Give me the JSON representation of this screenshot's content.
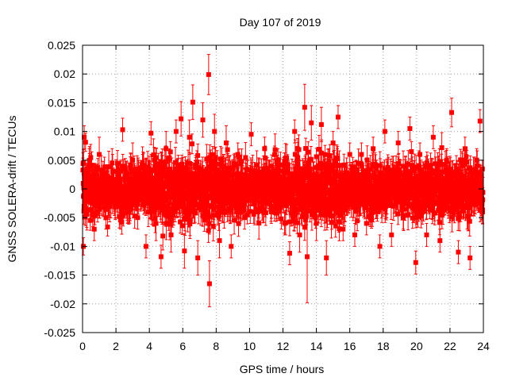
{
  "chart_data": {
    "type": "scatter",
    "title": "Day 107 of 2019",
    "xlabel": "GPS time / hours",
    "ylabel": "GNSS SOLERA-drift / TECUs",
    "xlim": [
      0,
      24
    ],
    "ylim": [
      -0.025,
      0.025
    ],
    "x_ticks": [
      0,
      2,
      4,
      6,
      8,
      10,
      12,
      14,
      16,
      18,
      20,
      22,
      24
    ],
    "y_ticks": [
      -0.025,
      -0.02,
      -0.015,
      -0.01,
      -0.005,
      0,
      0.005,
      0.01,
      0.015,
      0.02,
      0.025
    ],
    "x_tick_labels": [
      "0",
      "2",
      "4",
      "6",
      "8",
      "10",
      "12",
      "14",
      "16",
      "18",
      "20",
      "22",
      "24"
    ],
    "y_tick_labels": [
      "-0.025",
      "-0.02",
      "-0.015",
      "-0.01",
      "-0.005",
      "0",
      "0.005",
      "0.01",
      "0.015",
      "0.02",
      "0.025"
    ],
    "grid": true,
    "marker": "square",
    "error_bars": true,
    "color": "#ff0000",
    "series": [
      {
        "points": [
          {
            "x": 0.05,
            "y": -0.01,
            "err": 0.0015
          },
          {
            "x": 0.1,
            "y": 0.009,
            "err": 0.002
          },
          {
            "x": 0.4,
            "y": 0.004,
            "err": 0.003
          },
          {
            "x": 0.7,
            "y": -0.007,
            "err": 0.002
          },
          {
            "x": 1.0,
            "y": 0.006,
            "err": 0.003
          },
          {
            "x": 1.4,
            "y": -0.005,
            "err": 0.002
          },
          {
            "x": 1.8,
            "y": 0.003,
            "err": 0.003
          },
          {
            "x": 2.1,
            "y": -0.003,
            "err": 0.002
          },
          {
            "x": 2.4,
            "y": 0.0103,
            "err": 0.002
          },
          {
            "x": 2.7,
            "y": -0.004,
            "err": 0.002
          },
          {
            "x": 3.0,
            "y": 0.005,
            "err": 0.003
          },
          {
            "x": 3.3,
            "y": -0.005,
            "err": 0.002
          },
          {
            "x": 3.6,
            "y": 0.004,
            "err": 0.002
          },
          {
            "x": 3.8,
            "y": -0.01,
            "err": 0.002
          },
          {
            "x": 4.1,
            "y": 0.0097,
            "err": 0.002
          },
          {
            "x": 4.4,
            "y": -0.006,
            "err": 0.003
          },
          {
            "x": 4.7,
            "y": -0.0118,
            "err": 0.002
          },
          {
            "x": 5.0,
            "y": 0.007,
            "err": 0.003
          },
          {
            "x": 5.3,
            "y": -0.008,
            "err": 0.003
          },
          {
            "x": 5.6,
            "y": 0.01,
            "err": 0.002
          },
          {
            "x": 5.9,
            "y": 0.0122,
            "err": 0.003
          },
          {
            "x": 6.1,
            "y": -0.0108,
            "err": 0.003
          },
          {
            "x": 6.4,
            "y": 0.009,
            "err": 0.003
          },
          {
            "x": 6.6,
            "y": 0.0151,
            "err": 0.003
          },
          {
            "x": 6.9,
            "y": -0.012,
            "err": 0.003
          },
          {
            "x": 7.2,
            "y": 0.012,
            "err": 0.003
          },
          {
            "x": 7.55,
            "y": 0.0199,
            "err": 0.0035
          },
          {
            "x": 7.6,
            "y": -0.0165,
            "err": 0.004
          },
          {
            "x": 7.9,
            "y": 0.01,
            "err": 0.003
          },
          {
            "x": 8.2,
            "y": -0.009,
            "err": 0.003
          },
          {
            "x": 8.6,
            "y": 0.008,
            "err": 0.003
          },
          {
            "x": 8.9,
            "y": -0.01,
            "err": 0.002
          },
          {
            "x": 9.3,
            "y": 0.006,
            "err": 0.002
          },
          {
            "x": 9.7,
            "y": -0.005,
            "err": 0.002
          },
          {
            "x": 10.1,
            "y": 0.0095,
            "err": 0.002
          },
          {
            "x": 10.5,
            "y": -0.004,
            "err": 0.002
          },
          {
            "x": 10.9,
            "y": 0.007,
            "err": 0.002
          },
          {
            "x": 11.3,
            "y": -0.004,
            "err": 0.002
          },
          {
            "x": 11.7,
            "y": 0.005,
            "err": 0.002
          },
          {
            "x": 12.1,
            "y": -0.006,
            "err": 0.002
          },
          {
            "x": 12.4,
            "y": -0.0112,
            "err": 0.002
          },
          {
            "x": 12.7,
            "y": 0.01,
            "err": 0.002
          },
          {
            "x": 13.0,
            "y": -0.008,
            "err": 0.003
          },
          {
            "x": 13.3,
            "y": 0.0142,
            "err": 0.004
          },
          {
            "x": 13.45,
            "y": -0.0118,
            "err": 0.008
          },
          {
            "x": 13.7,
            "y": 0.0115,
            "err": 0.003
          },
          {
            "x": 14.0,
            "y": -0.006,
            "err": 0.003
          },
          {
            "x": 14.3,
            "y": 0.0112,
            "err": 0.003
          },
          {
            "x": 14.6,
            "y": -0.012,
            "err": 0.003
          },
          {
            "x": 15.0,
            "y": 0.008,
            "err": 0.002
          },
          {
            "x": 15.3,
            "y": 0.0125,
            "err": 0.002
          },
          {
            "x": 15.6,
            "y": -0.007,
            "err": 0.002
          },
          {
            "x": 16.0,
            "y": 0.006,
            "err": 0.002
          },
          {
            "x": 16.3,
            "y": -0.008,
            "err": 0.002
          },
          {
            "x": 16.7,
            "y": 0.006,
            "err": 0.002
          },
          {
            "x": 17.0,
            "y": -0.006,
            "err": 0.002
          },
          {
            "x": 17.4,
            "y": 0.007,
            "err": 0.002
          },
          {
            "x": 17.8,
            "y": -0.01,
            "err": 0.002
          },
          {
            "x": 18.1,
            "y": 0.01,
            "err": 0.002
          },
          {
            "x": 18.5,
            "y": -0.008,
            "err": 0.002
          },
          {
            "x": 18.9,
            "y": 0.008,
            "err": 0.002
          },
          {
            "x": 19.2,
            "y": -0.005,
            "err": 0.002
          },
          {
            "x": 19.6,
            "y": 0.0105,
            "err": 0.002
          },
          {
            "x": 19.95,
            "y": -0.0128,
            "err": 0.002
          },
          {
            "x": 20.2,
            "y": 0.006,
            "err": 0.002
          },
          {
            "x": 20.6,
            "y": -0.008,
            "err": 0.002
          },
          {
            "x": 21.0,
            "y": 0.009,
            "err": 0.002
          },
          {
            "x": 21.4,
            "y": -0.009,
            "err": 0.002
          },
          {
            "x": 21.8,
            "y": 0.005,
            "err": 0.002
          },
          {
            "x": 22.1,
            "y": 0.0133,
            "err": 0.0025
          },
          {
            "x": 22.5,
            "y": -0.011,
            "err": 0.002
          },
          {
            "x": 22.9,
            "y": 0.007,
            "err": 0.002
          },
          {
            "x": 23.2,
            "y": -0.012,
            "err": 0.002
          },
          {
            "x": 23.6,
            "y": 0.005,
            "err": 0.002
          },
          {
            "x": 23.8,
            "y": 0.0118,
            "err": 0.002
          },
          {
            "x": 23.95,
            "y": -0.004,
            "err": 0.002
          }
        ]
      }
    ]
  }
}
